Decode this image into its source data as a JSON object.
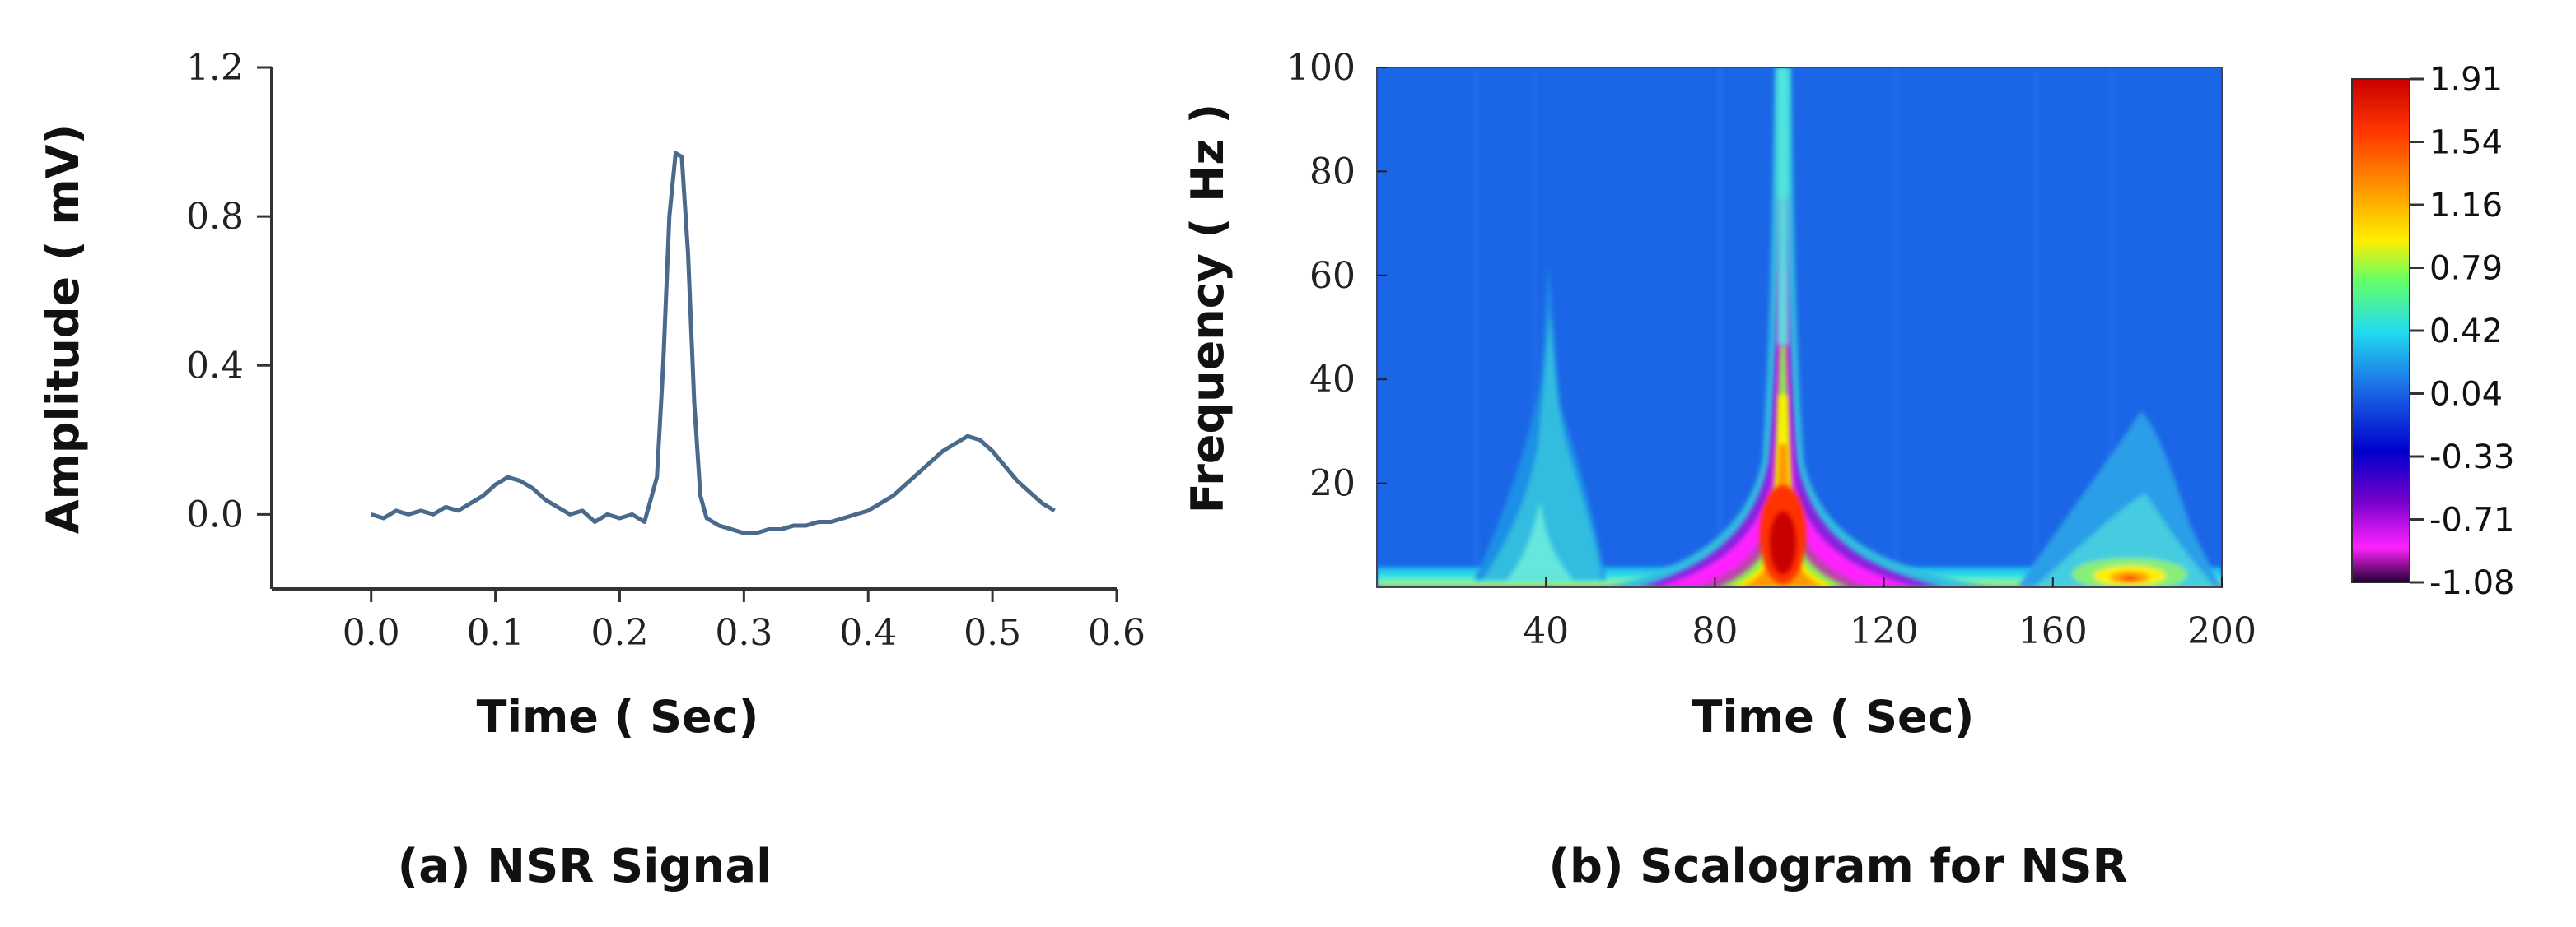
{
  "chart_data": [
    {
      "type": "line",
      "caption": "(a) NSR Signal",
      "xlabel": "Time ( Sec)",
      "ylabel": "Amplitude ( mV)",
      "xlim": [
        -0.08,
        0.6
      ],
      "ylim": [
        -0.2,
        1.2
      ],
      "x_ticks": [
        "0.0",
        "0.1",
        "0.2",
        "0.3",
        "0.4",
        "0.5",
        "0.6"
      ],
      "y_ticks": [
        "0.0",
        "0.4",
        "0.8",
        "1.2"
      ],
      "line_color": "#4a6a8c",
      "series": [
        {
          "x": [
            0.0,
            0.01,
            0.02,
            0.03,
            0.04,
            0.05,
            0.06,
            0.07,
            0.08,
            0.09,
            0.1,
            0.11,
            0.12,
            0.13,
            0.14,
            0.15,
            0.16,
            0.17,
            0.18,
            0.19,
            0.2,
            0.21,
            0.22,
            0.23,
            0.235,
            0.24,
            0.245,
            0.25,
            0.255,
            0.26,
            0.265,
            0.27,
            0.28,
            0.29,
            0.3,
            0.31,
            0.32,
            0.33,
            0.34,
            0.35,
            0.36,
            0.37,
            0.38,
            0.39,
            0.4,
            0.41,
            0.42,
            0.43,
            0.44,
            0.45,
            0.46,
            0.47,
            0.48,
            0.49,
            0.5,
            0.51,
            0.52,
            0.53,
            0.54,
            0.55
          ],
          "y": [
            0.0,
            -0.01,
            0.01,
            0.0,
            0.01,
            0.0,
            0.02,
            0.01,
            0.03,
            0.05,
            0.08,
            0.1,
            0.09,
            0.07,
            0.04,
            0.02,
            0.0,
            0.01,
            -0.02,
            0.0,
            -0.01,
            0.0,
            -0.02,
            0.1,
            0.4,
            0.8,
            0.97,
            0.96,
            0.7,
            0.3,
            0.05,
            -0.01,
            -0.03,
            -0.04,
            -0.05,
            -0.05,
            -0.04,
            -0.04,
            -0.03,
            -0.03,
            -0.02,
            -0.02,
            -0.01,
            0.0,
            0.01,
            0.03,
            0.05,
            0.08,
            0.11,
            0.14,
            0.17,
            0.19,
            0.21,
            0.2,
            0.17,
            0.13,
            0.09,
            0.06,
            0.03,
            0.01
          ]
        }
      ]
    },
    {
      "type": "heatmap",
      "caption": "(b) Scalogram for NSR",
      "xlabel": "Time ( Sec)",
      "ylabel": "Frequency ( Hz )",
      "xlim": [
        0,
        200
      ],
      "ylim": [
        0,
        100
      ],
      "x_ticks": [
        "40",
        "80",
        "120",
        "160",
        "200"
      ],
      "y_ticks": [
        "20",
        "40",
        "60",
        "80",
        "100"
      ],
      "background_color": "#1b66e6",
      "colorbar": {
        "ticks": [
          "1.91",
          "1.54",
          "1.16",
          "0.79",
          "0.42",
          "0.04",
          "-0.33",
          "-0.71",
          "-1.08"
        ],
        "colors": [
          "#c80000",
          "#ff3300",
          "#ff9900",
          "#ffee00",
          "#66ff66",
          "#22ddee",
          "#1b66e6",
          "#0000cc",
          "#7700cc",
          "#ff22ff",
          "#220033"
        ]
      },
      "features": [
        {
          "kind": "central-ridge",
          "x": 90,
          "y_top": 100,
          "peak_y": 8,
          "peak_value": 1.91
        },
        {
          "kind": "low-frequency-band",
          "x_range": [
            0,
            200
          ],
          "y_range": [
            0,
            4
          ],
          "value": 0.42
        },
        {
          "kind": "left-plume",
          "x": 42,
          "y_top": 62,
          "value": 0.42
        },
        {
          "kind": "right-blob",
          "x": 175,
          "y_top": 35,
          "peak_y": 4,
          "peak_value": 1.16
        }
      ]
    }
  ]
}
